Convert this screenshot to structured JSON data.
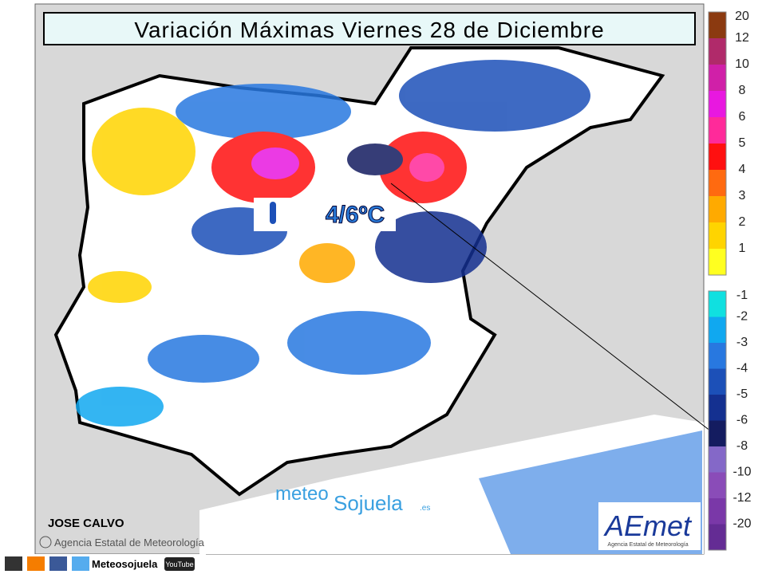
{
  "header": {
    "title": "Variación Máximas Viernes 28 de Diciembre"
  },
  "annotation": {
    "label": "4/6ºC"
  },
  "author": "JOSE CALVO",
  "credit": "Agencia Estatal de Meteorología",
  "watermark": {
    "part1": "meteo",
    "part2": "Sojuela",
    "part3": ".es"
  },
  "logo": {
    "name": "AEmet",
    "subtitle": "Agencia Estatal de Meteorología"
  },
  "social": {
    "name": "Meteosojuela",
    "youtube": "YouTube"
  },
  "legend": {
    "warm": [
      {
        "label": "20",
        "color": "#8b3a10"
      },
      {
        "label": "12",
        "color": "#b02a6a"
      },
      {
        "label": "10",
        "color": "#d020a8"
      },
      {
        "label": "8",
        "color": "#e818e0"
      },
      {
        "label": "6",
        "color": "#ff2a9a"
      },
      {
        "label": "5",
        "color": "#ff1010"
      },
      {
        "label": "4",
        "color": "#ff6a10"
      },
      {
        "label": "3",
        "color": "#ffaa00"
      },
      {
        "label": "2",
        "color": "#ffd400"
      },
      {
        "label": "1",
        "color": "#ffff20"
      }
    ],
    "cold": [
      {
        "label": "-1",
        "color": "#10e0e0"
      },
      {
        "label": "-2",
        "color": "#10a8f0"
      },
      {
        "label": "-3",
        "color": "#2878e0"
      },
      {
        "label": "-4",
        "color": "#1c50b8"
      },
      {
        "label": "-5",
        "color": "#143090"
      },
      {
        "label": "-6",
        "color": "#141c60"
      },
      {
        "label": "-8",
        "color": "#8468c8"
      },
      {
        "label": "-10",
        "color": "#8a4cb8"
      },
      {
        "label": "-12",
        "color": "#7a38a8"
      },
      {
        "label": "-20",
        "color": "#642c94"
      }
    ]
  }
}
